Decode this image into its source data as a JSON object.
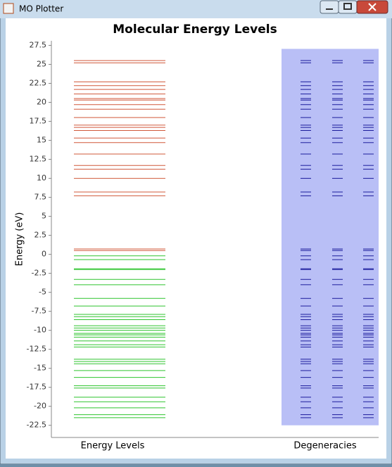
{
  "window": {
    "title": "MO Plotter"
  },
  "chart_data": {
    "type": "energy_levels",
    "title": "Molecular Energy Levels",
    "ylabel": "Energy (eV)",
    "categories": [
      "Energy Levels",
      "Degeneracies"
    ],
    "ylim": [
      -24.1,
      28.1
    ],
    "yticks": [
      -22.5,
      -20,
      -17.5,
      -15,
      -12.5,
      -10,
      -7.5,
      -5,
      -2.5,
      0,
      2.5,
      5,
      7.5,
      10,
      12.5,
      15,
      17.5,
      20,
      22.5,
      25,
      27.5
    ],
    "virtual_levels": {
      "color": "#d0583a",
      "values": [
        25.5,
        25.2,
        22.7,
        22.2,
        21.7,
        21.1,
        20.5,
        20.3,
        19.7,
        19.1,
        18.0,
        17.0,
        16.7,
        16.3,
        15.3,
        14.7,
        13.2,
        11.7,
        11.2,
        10.0,
        8.2,
        7.7,
        0.7,
        0.5
      ]
    },
    "occupied_levels": {
      "color": "#2ec42e",
      "values": [
        -0.2,
        -0.7,
        -1.9,
        -2.0,
        -3.3,
        -4.0,
        -5.8,
        -6.8,
        -7.9,
        -8.2,
        -8.6,
        -9.4,
        -9.7,
        -10.0,
        -10.4,
        -10.6,
        -10.9,
        -11.4,
        -11.9,
        -12.2,
        -13.8,
        -14.1,
        -14.4,
        -15.3,
        -16.2,
        -17.3,
        -17.6,
        -18.8,
        -19.4,
        -20.2,
        -21.1,
        -21.5
      ]
    },
    "degeneracy_color": "#1c1c9c",
    "degeneracy_panel_color": "#b9bff6"
  }
}
